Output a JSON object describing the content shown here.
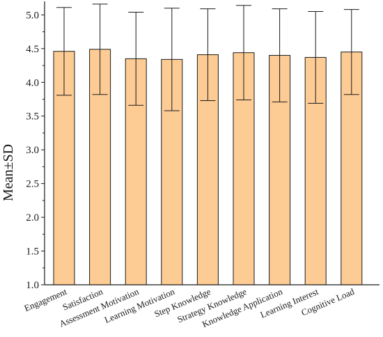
{
  "chart_data": {
    "type": "bar",
    "title": "",
    "xlabel": "",
    "ylabel": "Mean±SD",
    "ylim": [
      1.0,
      5.2
    ],
    "yticks": [
      "1.0",
      "1.5",
      "2.0",
      "2.5",
      "3.0",
      "3.5",
      "4.0",
      "4.5",
      "5.0"
    ],
    "grid": false,
    "legend": "none",
    "error_bars": "SD",
    "categories": [
      "Engagement",
      "Satisfaction",
      "Assessment Motivation",
      "Learning Motivation",
      "Step Knowledge",
      "Strategy Knowledge",
      "Knowledge Application",
      "Learning Interest",
      "Cognitive Load"
    ],
    "values": [
      4.46,
      4.49,
      4.35,
      4.34,
      4.41,
      4.44,
      4.4,
      4.37,
      4.45
    ],
    "sd": [
      0.65,
      0.67,
      0.69,
      0.76,
      0.68,
      0.7,
      0.69,
      0.68,
      0.63
    ],
    "colors": {
      "bar_fill": "#FDCB94",
      "bar_stroke": "#1a1a1a",
      "axis": "#1a1a1a",
      "error_bar": "#1a1a1a"
    }
  }
}
